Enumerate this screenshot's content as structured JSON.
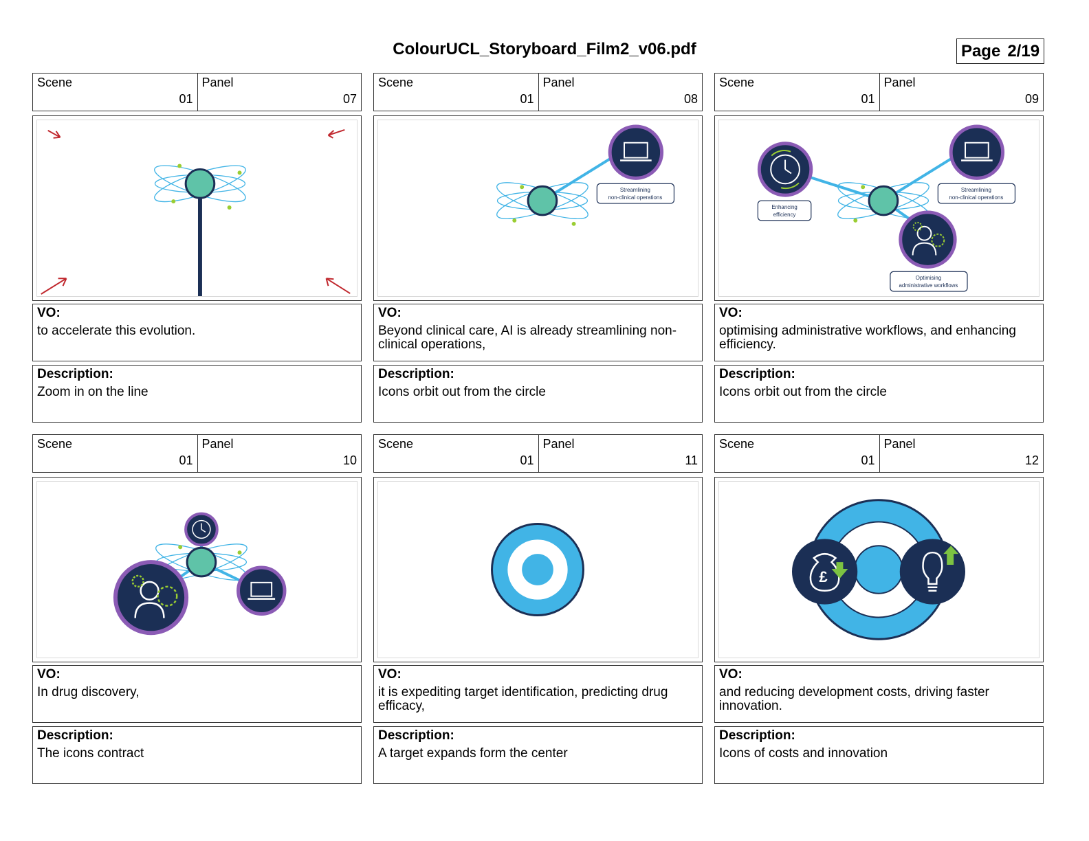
{
  "document": {
    "title": "ColourUCL_Storyboard_Film2_v06.pdf",
    "page_label": "Page",
    "page_number": "2/19"
  },
  "labels": {
    "scene": "Scene",
    "panel": "Panel",
    "vo": "VO:",
    "description": "Description:"
  },
  "panels": [
    {
      "scene": "01",
      "panel": "07",
      "vo": "to accelerate this evolution.",
      "description": "Zoom in on the line",
      "artwork": [
        "orbit-globe-icon",
        "vertical-line",
        "zoom-arrow-icon"
      ]
    },
    {
      "scene": "01",
      "panel": "08",
      "vo": "Beyond clinical care, AI is already streamlining non-clinical operations,",
      "description": "Icons orbit out from the circle",
      "artwork": [
        "orbit-globe-icon",
        "laptop-icon"
      ],
      "captions": [
        "Streamlining",
        "non-clinical operations"
      ]
    },
    {
      "scene": "01",
      "panel": "09",
      "vo": "optimising administrative workflows, and enhancing efficiency.",
      "description": "Icons orbit out from the circle",
      "artwork": [
        "orbit-globe-icon",
        "laptop-icon",
        "clock-icon",
        "person-gear-icon"
      ],
      "captions": [
        "Streamlining",
        "non-clinical operations",
        "Enhancing",
        "efficiency",
        "Optimising",
        "administrative workflows"
      ]
    },
    {
      "scene": "01",
      "panel": "10",
      "vo": "In drug discovery,",
      "description": "The icons contract",
      "artwork": [
        "orbit-globe-icon",
        "clock-icon",
        "person-gear-icon",
        "laptop-icon"
      ]
    },
    {
      "scene": "01",
      "panel": "11",
      "vo": "it is expediting target identification, predicting drug efficacy,",
      "description": "A target expands form the center",
      "artwork": [
        "target-icon"
      ]
    },
    {
      "scene": "01",
      "panel": "12",
      "vo": "and reducing development costs, driving faster innovation.",
      "description": "Icons of costs and innovation",
      "artwork": [
        "target-icon",
        "money-bag-icon",
        "lightbulb-icon"
      ],
      "captions": [
        "£"
      ]
    }
  ],
  "colors": {
    "navy": "#1b2f55",
    "purple": "#8b5bb5",
    "cyan": "#41b4e6",
    "lime": "#9acd32",
    "red_arrow": "#c0272d"
  }
}
